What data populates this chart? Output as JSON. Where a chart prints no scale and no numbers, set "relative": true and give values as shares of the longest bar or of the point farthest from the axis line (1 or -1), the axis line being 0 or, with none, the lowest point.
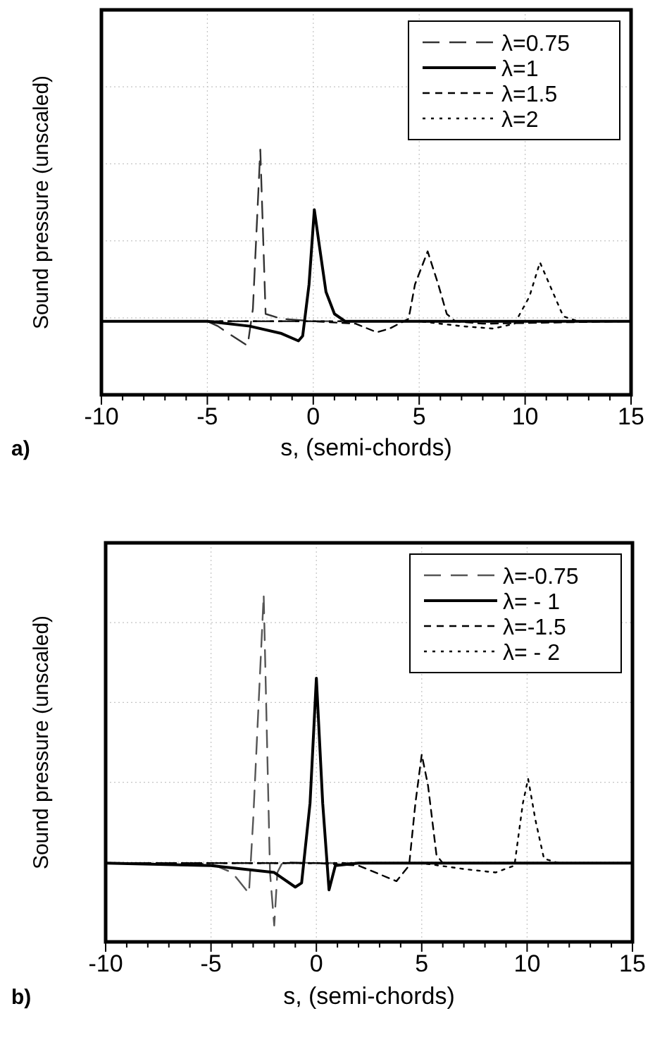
{
  "chart_data": [
    {
      "type": "line",
      "relative": true,
      "xlabel": "s, (semi-chords)",
      "ylabel": "Sound pressure (unscaled)",
      "annotations": [
        "a)"
      ],
      "xlim": [
        -10,
        15
      ],
      "xticks": [
        -10,
        {
          "value": -9,
          "label": null
        },
        {
          "value": -8,
          "label": null
        },
        {
          "value": -7,
          "label": null
        },
        {
          "value": -6,
          "label": null
        },
        -5,
        {
          "value": -4,
          "label": null
        },
        {
          "value": -3,
          "label": null
        },
        {
          "value": -2,
          "label": null
        },
        {
          "value": -1,
          "label": null
        },
        0,
        {
          "value": 1,
          "label": null
        },
        {
          "value": 2,
          "label": null
        },
        {
          "value": 3,
          "label": null
        },
        {
          "value": 4,
          "label": null
        },
        5,
        {
          "value": 6,
          "label": null
        },
        {
          "value": 7,
          "label": null
        },
        {
          "value": 8,
          "label": null
        },
        {
          "value": 9,
          "label": null
        },
        10,
        {
          "value": 11,
          "label": null
        },
        {
          "value": 12,
          "label": null
        },
        {
          "value": 13,
          "label": null
        },
        {
          "value": 14,
          "label": null
        },
        15
      ],
      "grid": true,
      "legend": "top right",
      "series": [
        {
          "name": "λ=0.75",
          "color": "#333333",
          "line_style": "dashed",
          "x": [
            -10,
            -5,
            -4.5,
            -4,
            -3.1,
            -2.85,
            -2.5,
            -2.35,
            -2.25,
            -1.5,
            0,
            5,
            15
          ],
          "values": [
            0.3,
            0.3,
            0.28,
            0.25,
            0.2,
            0.35,
            1.0,
            0.6,
            0.33,
            0.31,
            0.3,
            0.3,
            0.3
          ]
        },
        {
          "name": "λ=1",
          "color": "#000000",
          "line_style": "solid",
          "x": [
            -10,
            -5,
            -3,
            -1.5,
            -0.7,
            -0.5,
            -0.2,
            0.05,
            0.3,
            0.6,
            1,
            1.5,
            3,
            15
          ],
          "values": [
            0.3,
            0.3,
            0.28,
            0.25,
            0.22,
            0.24,
            0.45,
            0.755,
            0.6,
            0.42,
            0.33,
            0.3,
            0.3,
            0.3
          ]
        },
        {
          "name": "λ=1.5",
          "color": "#000000",
          "line_style": "dashed",
          "x": [
            -10,
            0,
            2,
            3,
            3.6,
            4.5,
            4.8,
            5.4,
            5.9,
            6.3,
            6.7,
            8,
            15
          ],
          "values": [
            0.3,
            0.3,
            0.29,
            0.255,
            0.27,
            0.31,
            0.45,
            0.585,
            0.45,
            0.33,
            0.3,
            0.29,
            0.3
          ]
        },
        {
          "name": "λ=2",
          "color": "#000000",
          "line_style": "dotted",
          "x": [
            -10,
            5,
            7,
            8.5,
            9.5,
            10.2,
            10.7,
            11.3,
            11.8,
            12.5,
            15
          ],
          "values": [
            0.3,
            0.3,
            0.28,
            0.27,
            0.29,
            0.4,
            0.54,
            0.42,
            0.32,
            0.3,
            0.3
          ]
        }
      ]
    },
    {
      "type": "line",
      "relative": true,
      "xlabel": "s, (semi-chords)",
      "ylabel": "Sound pressure (unscaled)",
      "annotations": [
        "b)"
      ],
      "xlim": [
        -10,
        15
      ],
      "xticks": [
        -10,
        {
          "value": -9,
          "label": null
        },
        {
          "value": -8,
          "label": null
        },
        {
          "value": -7,
          "label": null
        },
        {
          "value": -6,
          "label": null
        },
        -5,
        {
          "value": -4,
          "label": null
        },
        {
          "value": -3,
          "label": null
        },
        {
          "value": -2,
          "label": null
        },
        {
          "value": -1,
          "label": null
        },
        0,
        {
          "value": 1,
          "label": null
        },
        {
          "value": 2,
          "label": null
        },
        {
          "value": 3,
          "label": null
        },
        {
          "value": 4,
          "label": null
        },
        5,
        {
          "value": 6,
          "label": null
        },
        {
          "value": 7,
          "label": null
        },
        {
          "value": 8,
          "label": null
        },
        {
          "value": 9,
          "label": null
        },
        10,
        {
          "value": 11,
          "label": null
        },
        {
          "value": 12,
          "label": null
        },
        {
          "value": 13,
          "label": null
        },
        {
          "value": 14,
          "label": null
        },
        15
      ],
      "grid": true,
      "legend": "top right",
      "series": [
        {
          "name": "λ=-0.75",
          "color": "#555555",
          "line_style": "dashed",
          "x": [
            -10,
            -5,
            -4,
            -3.2,
            -3.0,
            -2.5,
            -2.35,
            -2.2,
            -2.0,
            -1.85,
            -1.6,
            0,
            15
          ],
          "values": [
            0.227,
            0.225,
            0.2,
            0.14,
            0.35,
            1.0,
            0.6,
            0.2,
            0.047,
            0.2,
            0.23,
            0.227,
            0.227
          ]
        },
        {
          "name": "λ= - 1",
          "color": "#000000",
          "line_style": "solid",
          "x": [
            -10,
            -5,
            -2,
            -1,
            -0.7,
            -0.3,
            0,
            0.3,
            0.6,
            0.9,
            2,
            15
          ],
          "values": [
            0.227,
            0.22,
            0.2,
            0.158,
            0.17,
            0.4,
            0.76,
            0.4,
            0.15,
            0.22,
            0.227,
            0.227
          ]
        },
        {
          "name": "λ=-1.5",
          "color": "#000000",
          "line_style": "dashed",
          "x": [
            -10,
            0,
            2,
            3.8,
            4.4,
            4.7,
            5,
            5.3,
            5.7,
            6,
            15
          ],
          "values": [
            0.227,
            0.227,
            0.22,
            0.175,
            0.22,
            0.4,
            0.54,
            0.45,
            0.25,
            0.227,
            0.227
          ]
        },
        {
          "name": "λ= - 2",
          "color": "#000000",
          "line_style": "dotted",
          "x": [
            -10,
            5,
            7,
            8.5,
            9.4,
            9.8,
            10.05,
            10.4,
            10.8,
            11.5,
            15
          ],
          "values": [
            0.227,
            0.227,
            0.21,
            0.2,
            0.22,
            0.4,
            0.47,
            0.35,
            0.24,
            0.227,
            0.227
          ]
        }
      ]
    }
  ]
}
